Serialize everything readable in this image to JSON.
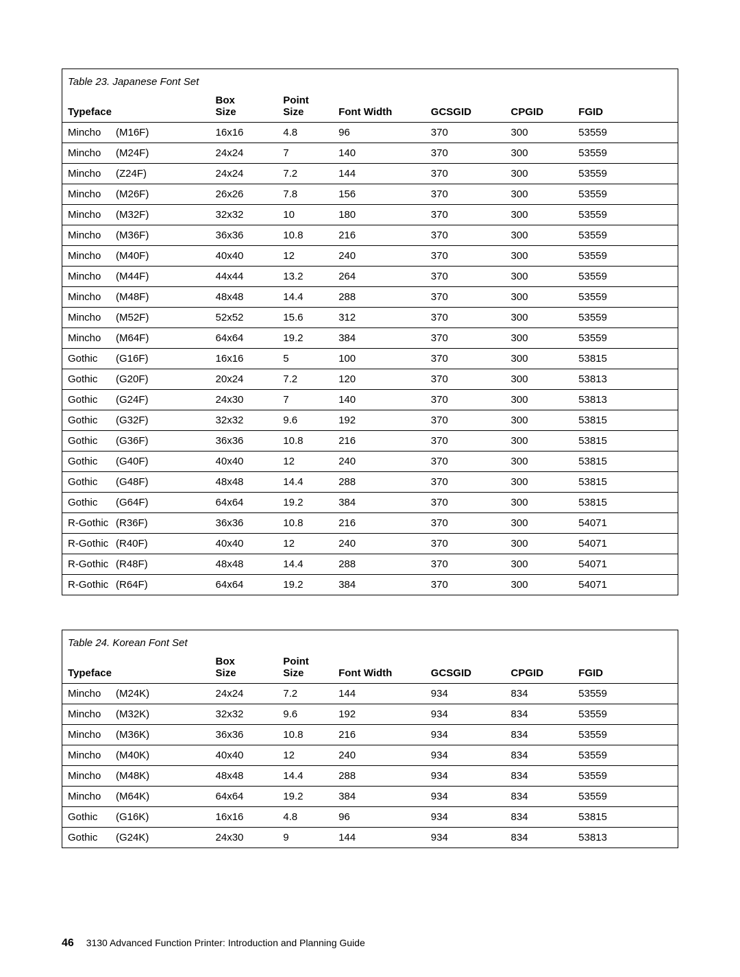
{
  "table1": {
    "caption": "Table 23. Japanese Font Set",
    "columns": [
      "Typeface",
      "Box Size",
      "Point Size",
      "Font Width",
      "GCSGID",
      "CPGID",
      "FGID"
    ],
    "rows": [
      {
        "name": "Mincho",
        "code": "(M16F)",
        "box": "16x16",
        "point": "4.8",
        "fw": "96",
        "gcs": "370",
        "cpg": "300",
        "fgid": "53559"
      },
      {
        "name": "Mincho",
        "code": "(M24F)",
        "box": "24x24",
        "point": "7",
        "fw": "140",
        "gcs": "370",
        "cpg": "300",
        "fgid": "53559"
      },
      {
        "name": "Mincho",
        "code": "(Z24F)",
        "box": "24x24",
        "point": "7.2",
        "fw": "144",
        "gcs": "370",
        "cpg": "300",
        "fgid": "53559"
      },
      {
        "name": "Mincho",
        "code": "(M26F)",
        "box": "26x26",
        "point": "7.8",
        "fw": "156",
        "gcs": "370",
        "cpg": "300",
        "fgid": "53559"
      },
      {
        "name": "Mincho",
        "code": "(M32F)",
        "box": "32x32",
        "point": "10",
        "fw": "180",
        "gcs": "370",
        "cpg": "300",
        "fgid": "53559"
      },
      {
        "name": "Mincho",
        "code": "(M36F)",
        "box": "36x36",
        "point": "10.8",
        "fw": "216",
        "gcs": "370",
        "cpg": "300",
        "fgid": "53559"
      },
      {
        "name": "Mincho",
        "code": "(M40F)",
        "box": "40x40",
        "point": "12",
        "fw": "240",
        "gcs": "370",
        "cpg": "300",
        "fgid": "53559"
      },
      {
        "name": "Mincho",
        "code": "(M44F)",
        "box": "44x44",
        "point": "13.2",
        "fw": "264",
        "gcs": "370",
        "cpg": "300",
        "fgid": "53559"
      },
      {
        "name": "Mincho",
        "code": "(M48F)",
        "box": "48x48",
        "point": "14.4",
        "fw": "288",
        "gcs": "370",
        "cpg": "300",
        "fgid": "53559"
      },
      {
        "name": "Mincho",
        "code": "(M52F)",
        "box": "52x52",
        "point": "15.6",
        "fw": "312",
        "gcs": "370",
        "cpg": "300",
        "fgid": "53559"
      },
      {
        "name": "Mincho",
        "code": "(M64F)",
        "box": "64x64",
        "point": "19.2",
        "fw": "384",
        "gcs": "370",
        "cpg": "300",
        "fgid": "53559"
      },
      {
        "name": "Gothic",
        "code": "(G16F)",
        "box": "16x16",
        "point": "5",
        "fw": "100",
        "gcs": "370",
        "cpg": "300",
        "fgid": "53815"
      },
      {
        "name": "Gothic",
        "code": "(G20F)",
        "box": "20x24",
        "point": "7.2",
        "fw": "120",
        "gcs": "370",
        "cpg": "300",
        "fgid": "53813"
      },
      {
        "name": "Gothic",
        "code": "(G24F)",
        "box": "24x30",
        "point": "7",
        "fw": "140",
        "gcs": "370",
        "cpg": "300",
        "fgid": "53813"
      },
      {
        "name": "Gothic",
        "code": "(G32F)",
        "box": "32x32",
        "point": "9.6",
        "fw": "192",
        "gcs": "370",
        "cpg": "300",
        "fgid": "53815"
      },
      {
        "name": "Gothic",
        "code": "(G36F)",
        "box": "36x36",
        "point": "10.8",
        "fw": "216",
        "gcs": "370",
        "cpg": "300",
        "fgid": "53815"
      },
      {
        "name": "Gothic",
        "code": "(G40F)",
        "box": "40x40",
        "point": "12",
        "fw": "240",
        "gcs": "370",
        "cpg": "300",
        "fgid": "53815"
      },
      {
        "name": "Gothic",
        "code": "(G48F)",
        "box": "48x48",
        "point": "14.4",
        "fw": "288",
        "gcs": "370",
        "cpg": "300",
        "fgid": "53815"
      },
      {
        "name": "Gothic",
        "code": "(G64F)",
        "box": "64x64",
        "point": "19.2",
        "fw": "384",
        "gcs": "370",
        "cpg": "300",
        "fgid": "53815"
      },
      {
        "name": "R-Gothic",
        "code": "(R36F)",
        "box": "36x36",
        "point": "10.8",
        "fw": "216",
        "gcs": "370",
        "cpg": "300",
        "fgid": "54071"
      },
      {
        "name": "R-Gothic",
        "code": "(R40F)",
        "box": "40x40",
        "point": "12",
        "fw": "240",
        "gcs": "370",
        "cpg": "300",
        "fgid": "54071"
      },
      {
        "name": "R-Gothic",
        "code": "(R48F)",
        "box": "48x48",
        "point": "14.4",
        "fw": "288",
        "gcs": "370",
        "cpg": "300",
        "fgid": "54071"
      },
      {
        "name": "R-Gothic",
        "code": "(R64F)",
        "box": "64x64",
        "point": "19.2",
        "fw": "384",
        "gcs": "370",
        "cpg": "300",
        "fgid": "54071"
      }
    ]
  },
  "table2": {
    "caption": "Table 24. Korean Font Set",
    "columns": [
      "Typeface",
      "Box Size",
      "Point Size",
      "Font Width",
      "GCSGID",
      "CPGID",
      "FGID"
    ],
    "rows": [
      {
        "name": "Mincho",
        "code": "(M24K)",
        "box": "24x24",
        "point": "7.2",
        "fw": "144",
        "gcs": "934",
        "cpg": "834",
        "fgid": "53559"
      },
      {
        "name": "Mincho",
        "code": "(M32K)",
        "box": "32x32",
        "point": "9.6",
        "fw": "192",
        "gcs": "934",
        "cpg": "834",
        "fgid": "53559"
      },
      {
        "name": "Mincho",
        "code": "(M36K)",
        "box": "36x36",
        "point": "10.8",
        "fw": "216",
        "gcs": "934",
        "cpg": "834",
        "fgid": "53559"
      },
      {
        "name": "Mincho",
        "code": "(M40K)",
        "box": "40x40",
        "point": "12",
        "fw": "240",
        "gcs": "934",
        "cpg": "834",
        "fgid": "53559"
      },
      {
        "name": "Mincho",
        "code": "(M48K)",
        "box": "48x48",
        "point": "14.4",
        "fw": "288",
        "gcs": "934",
        "cpg": "834",
        "fgid": "53559"
      },
      {
        "name": "Mincho",
        "code": "(M64K)",
        "box": "64x64",
        "point": "19.2",
        "fw": "384",
        "gcs": "934",
        "cpg": "834",
        "fgid": "53559"
      },
      {
        "name": "Gothic",
        "code": "(G16K)",
        "box": "16x16",
        "point": "4.8",
        "fw": "96",
        "gcs": "934",
        "cpg": "834",
        "fgid": "53815"
      },
      {
        "name": "Gothic",
        "code": "(G24K)",
        "box": "24x30",
        "point": "9",
        "fw": "144",
        "gcs": "934",
        "cpg": "834",
        "fgid": "53813"
      }
    ]
  },
  "footer": {
    "page_number": "46",
    "text": "3130 Advanced Function Printer:  Introduction and Planning Guide"
  }
}
